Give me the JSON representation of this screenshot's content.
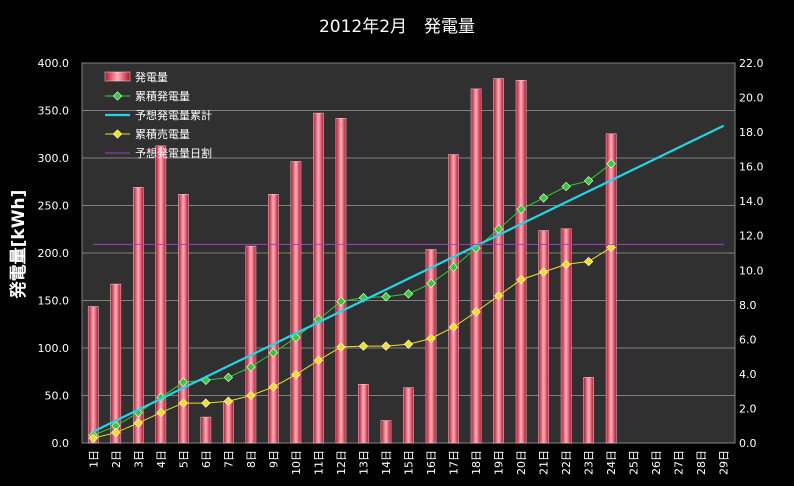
{
  "chart_data": {
    "type": "bar",
    "title": "2012年2月　発電量",
    "ylabel": "発電量[kWh]",
    "xlabel": "",
    "categories": [
      "1日",
      "2日",
      "3日",
      "4日",
      "5日",
      "6日",
      "7日",
      "8日",
      "9日",
      "10日",
      "11日",
      "12日",
      "13日",
      "14日",
      "15日",
      "16日",
      "17日",
      "18日",
      "19日",
      "20日",
      "21日",
      "22日",
      "23日",
      "24日",
      "25日",
      "26日",
      "27日",
      "28日",
      "29日"
    ],
    "ylim": [
      0,
      400
    ],
    "y2lim": [
      0,
      22
    ],
    "y_ticks": [
      "0.0",
      "50.0",
      "100.0",
      "150.0",
      "200.0",
      "250.0",
      "300.0",
      "350.0",
      "400.0"
    ],
    "y2_ticks": [
      "0.0",
      "2.0",
      "4.0",
      "6.0",
      "8.0",
      "10.0",
      "12.0",
      "14.0",
      "16.0",
      "18.0",
      "20.0",
      "22.0"
    ],
    "legend_position": "top-left",
    "colors": {
      "bar": "#e8344e",
      "cumulative": "#33cc33",
      "forecast": "#22d4e8",
      "sold": "#f0e020",
      "daily_forecast": "#a040c0",
      "grid": "#9a9a9a",
      "plot_bg": "#303030"
    },
    "series": [
      {
        "name": "発電量",
        "kind": "bar",
        "axis": "right",
        "values": [
          7.9,
          9.2,
          14.8,
          17.2,
          14.4,
          1.5,
          2.4,
          11.4,
          14.4,
          16.3,
          19.1,
          18.8,
          3.4,
          1.3,
          3.2,
          11.2,
          16.7,
          20.5,
          21.1,
          21.0,
          12.3,
          12.4,
          3.8,
          17.9,
          null,
          null,
          null,
          null,
          null
        ]
      },
      {
        "name": "累積発電量",
        "kind": "line",
        "axis": "left",
        "values": [
          8,
          18,
          32,
          48,
          64,
          66,
          69,
          80,
          95,
          111,
          130,
          149,
          153,
          154,
          157,
          168,
          185,
          205,
          225,
          246,
          258,
          270,
          276,
          294,
          null,
          null,
          null,
          null,
          null
        ]
      },
      {
        "name": "予想発電量累計",
        "kind": "line",
        "axis": "left",
        "values": [
          12,
          23.5,
          35,
          46.5,
          58,
          69.5,
          81,
          92.5,
          104,
          115.5,
          127,
          138.5,
          150,
          161.5,
          173,
          184.5,
          196,
          207.5,
          219,
          230.5,
          242,
          253.5,
          265,
          276.5,
          288,
          299.5,
          311,
          322.5,
          334
        ]
      },
      {
        "name": "累積売電量",
        "kind": "line",
        "axis": "left",
        "values": [
          5,
          11,
          21,
          32,
          42,
          42,
          44,
          50,
          59,
          72,
          87,
          101,
          102,
          102,
          104,
          110,
          122,
          138,
          155,
          172,
          180,
          188,
          191,
          206,
          null,
          null,
          null,
          null,
          null
        ]
      },
      {
        "name": "予想発電量日割",
        "kind": "line",
        "axis": "right",
        "values": [
          11.5,
          11.5,
          11.5,
          11.5,
          11.5,
          11.5,
          11.5,
          11.5,
          11.5,
          11.5,
          11.5,
          11.5,
          11.5,
          11.5,
          11.5,
          11.5,
          11.5,
          11.5,
          11.5,
          11.5,
          11.5,
          11.5,
          11.5,
          11.5,
          11.5,
          11.5,
          11.5,
          11.5,
          11.5
        ]
      }
    ]
  }
}
